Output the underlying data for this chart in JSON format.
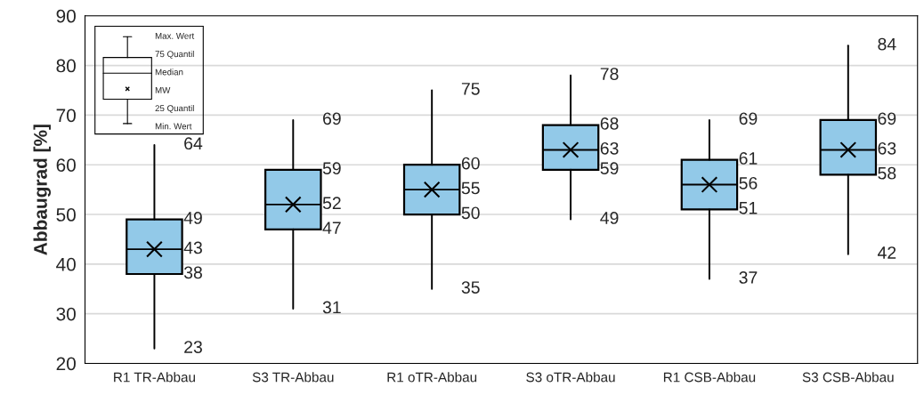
{
  "chart_data": {
    "type": "box",
    "ylabel": "Abbaugrad [%]",
    "categories": [
      "R1 TR-Abbau",
      "S3 TR-Abbau",
      "R1 oTR-Abbau",
      "S3 oTR-Abbau",
      "R1 CSB-Abbau",
      "S3 CSB-Abbau"
    ],
    "boxes": [
      {
        "low": 23,
        "q1": 38,
        "median": 43,
        "q3": 49,
        "high": 64,
        "mean": 43
      },
      {
        "low": 31,
        "q1": 47,
        "median": 52,
        "q3": 59,
        "high": 69,
        "mean": 52
      },
      {
        "low": 35,
        "q1": 50,
        "median": 55,
        "q3": 60,
        "high": 75,
        "mean": 55
      },
      {
        "low": 49,
        "q1": 59,
        "median": 63,
        "q3": 68,
        "high": 78,
        "mean": 63
      },
      {
        "low": 37,
        "q1": 51,
        "median": 56,
        "q3": 61,
        "high": 69,
        "mean": 56
      },
      {
        "low": 42,
        "q1": 58,
        "median": 63,
        "q3": 69,
        "high": 84,
        "mean": 63
      }
    ],
    "color": "#92c9e8",
    "ylim": [
      20,
      90
    ],
    "yticks": [
      20,
      30,
      40,
      50,
      60,
      70,
      80,
      90
    ],
    "grid": "y",
    "annotations": [
      "Max. Wert",
      "75 Quantil",
      "Median",
      "MW",
      "25 Quantil",
      "Min. Wert",
      {
        "text": "64",
        "x": "R1 TR-Abbau",
        "y": 64
      },
      {
        "text": "49",
        "x": "R1 TR-Abbau",
        "y": 49
      },
      {
        "text": "43",
        "x": "R1 TR-Abbau",
        "y": 43
      },
      {
        "text": "38",
        "x": "R1 TR-Abbau",
        "y": 38
      },
      {
        "text": "23",
        "x": "R1 TR-Abbau",
        "y": 23
      },
      {
        "text": "69",
        "x": "S3 TR-Abbau",
        "y": 69
      },
      {
        "text": "59",
        "x": "S3 TR-Abbau",
        "y": 59
      },
      {
        "text": "52",
        "x": "S3 TR-Abbau",
        "y": 52
      },
      {
        "text": "47",
        "x": "S3 TR-Abbau",
        "y": 47
      },
      {
        "text": "31",
        "x": "S3 TR-Abbau",
        "y": 31
      },
      {
        "text": "75",
        "x": "R1 oTR-Abbau",
        "y": 75
      },
      {
        "text": "60",
        "x": "R1 oTR-Abbau",
        "y": 60
      },
      {
        "text": "55",
        "x": "R1 oTR-Abbau",
        "y": 55
      },
      {
        "text": "50",
        "x": "R1 oTR-Abbau",
        "y": 50
      },
      {
        "text": "35",
        "x": "R1 oTR-Abbau",
        "y": 35
      },
      {
        "text": "78",
        "x": "S3 oTR-Abbau",
        "y": 78
      },
      {
        "text": "68",
        "x": "S3 oTR-Abbau",
        "y": 68
      },
      {
        "text": "63",
        "x": "S3 oTR-Abbau",
        "y": 63
      },
      {
        "text": "59",
        "x": "S3 oTR-Abbau",
        "y": 59
      },
      {
        "text": "49",
        "x": "S3 oTR-Abbau",
        "y": 49
      },
      {
        "text": "69",
        "x": "R1 CSB-Abbau",
        "y": 69
      },
      {
        "text": "61",
        "x": "R1 CSB-Abbau",
        "y": 61
      },
      {
        "text": "56",
        "x": "R1 CSB-Abbau",
        "y": 56
      },
      {
        "text": "51",
        "x": "R1 CSB-Abbau",
        "y": 51
      },
      {
        "text": "37",
        "x": "R1 CSB-Abbau",
        "y": 37
      },
      {
        "text": "84",
        "x": "S3 CSB-Abbau",
        "y": 84
      },
      {
        "text": "69",
        "x": "S3 CSB-Abbau",
        "y": 69
      },
      {
        "text": "63",
        "x": "S3 CSB-Abbau",
        "y": 63
      },
      {
        "text": "58",
        "x": "S3 CSB-Abbau",
        "y": 58
      },
      {
        "text": "42",
        "x": "S3 CSB-Abbau",
        "y": 42
      }
    ]
  }
}
